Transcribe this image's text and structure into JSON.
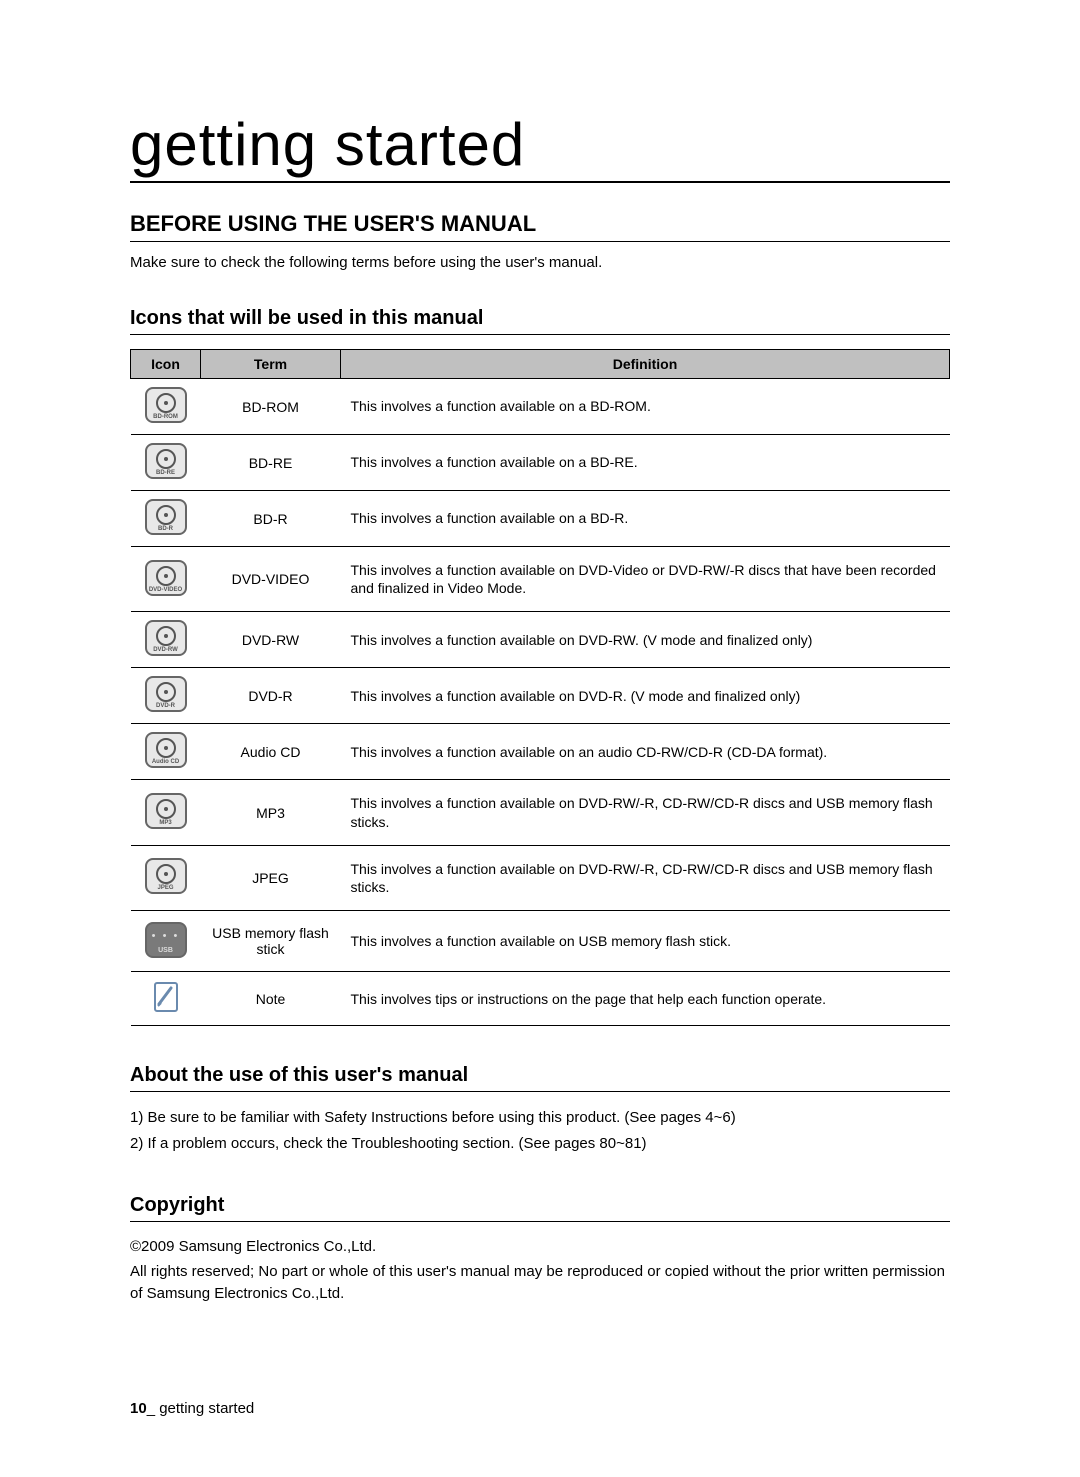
{
  "page": {
    "title": "getting started",
    "section_title": "BEFORE USING THE USER'S MANUAL",
    "intro": "Make sure to check the following terms before using the user's manual."
  },
  "icons_section": {
    "title": "Icons that will be used in this manual",
    "headers": {
      "icon": "Icon",
      "term": "Term",
      "definition": "Definition"
    },
    "rows": [
      {
        "icon_label": "BD-ROM",
        "icon_type": "disc",
        "term": "BD-ROM",
        "definition": "This involves a function available on a BD-ROM."
      },
      {
        "icon_label": "BD-RE",
        "icon_type": "disc",
        "term": "BD-RE",
        "definition": "This involves a function available on a BD-RE."
      },
      {
        "icon_label": "BD-R",
        "icon_type": "disc",
        "term": "BD-R",
        "definition": "This involves a function available on a BD-R."
      },
      {
        "icon_label": "DVD-VIDEO",
        "icon_type": "disc",
        "term": "DVD-VIDEO",
        "definition": "This involves a function available on DVD-Video or DVD-RW/-R discs that have been recorded and finalized in Video Mode."
      },
      {
        "icon_label": "DVD-RW",
        "icon_type": "disc",
        "term": "DVD-RW",
        "definition": "This involves a function available on DVD-RW. (V mode and finalized only)"
      },
      {
        "icon_label": "DVD-R",
        "icon_type": "disc",
        "term": "DVD-R",
        "definition": "This involves a function available on DVD-R. (V mode and finalized only)"
      },
      {
        "icon_label": "Audio CD",
        "icon_type": "disc",
        "term": "Audio CD",
        "definition": "This involves a function available on an audio CD-RW/CD-R (CD-DA format)."
      },
      {
        "icon_label": "MP3",
        "icon_type": "disc",
        "term": "MP3",
        "definition": "This involves a function available on DVD-RW/-R, CD-RW/CD-R discs and USB memory flash sticks."
      },
      {
        "icon_label": "JPEG",
        "icon_type": "disc",
        "term": "JPEG",
        "definition": "This involves a function available on DVD-RW/-R, CD-RW/CD-R discs and USB memory flash sticks."
      },
      {
        "icon_label": "USB",
        "icon_type": "usb",
        "term": "USB memory flash stick",
        "definition": "This involves a function available on USB memory flash stick."
      },
      {
        "icon_label": "Note",
        "icon_type": "note",
        "term": "Note",
        "definition": "This involves tips or instructions on the page that help each function operate."
      }
    ]
  },
  "about_section": {
    "title": "About the use of this user's manual",
    "items": [
      "1)  Be sure to be familiar with Safety Instructions before using this product. (See pages 4~6)",
      "2)  If a problem occurs, check the Troubleshooting section. (See pages 80~81)"
    ]
  },
  "copyright_section": {
    "title": "Copyright",
    "line1": "©2009 Samsung Electronics Co.,Ltd.",
    "line2": "All rights reserved; No part or whole of this user's manual may be reproduced or copied without the prior written permission of Samsung Electronics Co.,Ltd."
  },
  "footer": {
    "page_number": "10",
    "separator": "_",
    "label": " getting started"
  }
}
